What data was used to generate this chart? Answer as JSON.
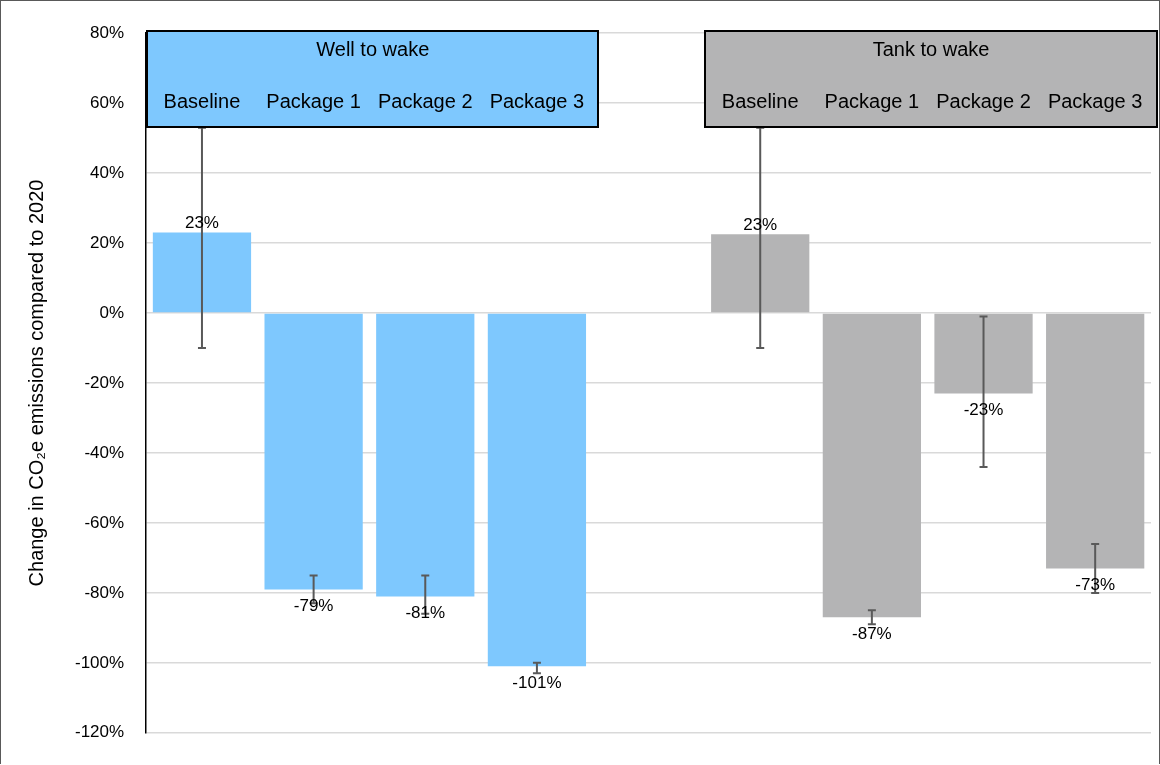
{
  "chart_data": {
    "type": "bar",
    "ylabel": "Change in CO₂e emissions compared to 2020",
    "annotations": [
      "Well to wake",
      "Tank to wake"
    ],
    "categories": [
      "Baseline",
      "Package 1",
      "Package 2",
      "Package 3",
      null,
      "Baseline",
      "Package 1",
      "Package 2",
      "Package 3"
    ],
    "values": [
      23,
      -79,
      -81,
      -101,
      null,
      22.5,
      -87,
      -23,
      -73
    ],
    "colors": [
      "#7ec8fe",
      "#7ec8fe",
      "#7ec8fe",
      "#7ec8fe",
      "#7ec8fe",
      "#b4b4b5",
      "#b4b4b5",
      "#b4b4b5",
      "#b4b4b5"
    ],
    "errors": [
      [
        -10,
        53
      ],
      [
        -83,
        -75
      ],
      [
        -86,
        -75
      ],
      [
        -103,
        -100
      ],
      null,
      [
        -10,
        53
      ],
      [
        -89,
        -85
      ],
      [
        -44,
        -1
      ],
      [
        -80,
        -66
      ]
    ],
    "value_labels": [
      "23%",
      "-79%",
      "-81%",
      "-101%",
      null,
      "23%",
      "-87%",
      "-23%",
      "-73%"
    ],
    "ylim": [
      -120,
      80
    ],
    "yticks": [
      {
        "value": -120,
        "label": "-120%"
      },
      {
        "value": -100,
        "label": "-100%"
      },
      {
        "value": -80,
        "label": "-80%"
      },
      {
        "value": -60,
        "label": "-60%"
      },
      {
        "value": -40,
        "label": "-40%"
      },
      {
        "value": -20,
        "label": "-20%"
      },
      {
        "value": 0,
        "label": "0%"
      },
      {
        "value": 20,
        "label": "20%"
      },
      {
        "value": 40,
        "label": "40%"
      },
      {
        "value": 60,
        "label": "60%"
      },
      {
        "value": 80,
        "label": "80%"
      }
    ],
    "grid": "y"
  }
}
